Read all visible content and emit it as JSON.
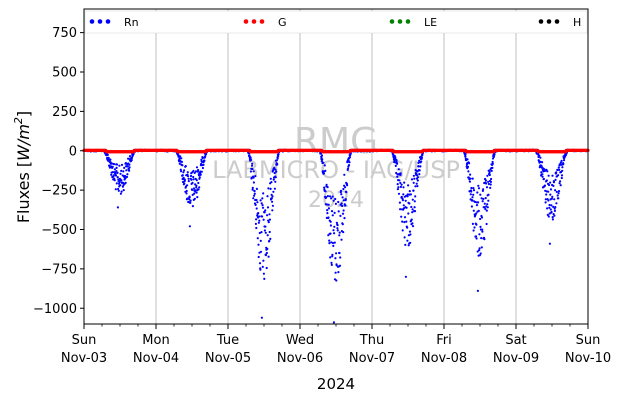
{
  "chart_data": {
    "type": "scatter",
    "title": "",
    "xlabel": "2024",
    "ylabel": "Fluxes [W/m²]",
    "ylabel_main": "Fluxes [",
    "ylabel_unit": "W/m",
    "ylabel_exp": "2",
    "ylabel_close": "]",
    "ylim": [
      -1100,
      900
    ],
    "yticks": [
      750,
      500,
      250,
      0,
      -250,
      -500,
      -750,
      -1000
    ],
    "ytick_labels": [
      "750",
      "500",
      "250",
      "0",
      "−250",
      "−500",
      "−750",
      "−1000"
    ],
    "xlim": [
      "2024-11-03",
      "2024-11-10"
    ],
    "xticks": [
      {
        "day": "Sun",
        "date": "Nov-03"
      },
      {
        "day": "Mon",
        "date": "Nov-04"
      },
      {
        "day": "Tue",
        "date": "Nov-05"
      },
      {
        "day": "Wed",
        "date": "Nov-06"
      },
      {
        "day": "Thu",
        "date": "Nov-07"
      },
      {
        "day": "Fri",
        "date": "Nov-08"
      },
      {
        "day": "Sat",
        "date": "Nov-09"
      },
      {
        "day": "Sun",
        "date": "Nov-10"
      }
    ],
    "grid": "vertical",
    "legend_position": "top",
    "series": [
      {
        "name": "Rn",
        "color": "#0000ff"
      },
      {
        "name": "G",
        "color": "#ff0000"
      },
      {
        "name": "LE",
        "color": "#008000"
      },
      {
        "name": "H",
        "color": "#000000"
      }
    ],
    "rn_daily_minimum": [
      {
        "date": "2024-11-03",
        "min": -360
      },
      {
        "date": "2024-11-04",
        "min": -480
      },
      {
        "date": "2024-11-05",
        "min": -1060
      },
      {
        "date": "2024-11-06",
        "min": -1090
      },
      {
        "date": "2024-11-07",
        "min": -800
      },
      {
        "date": "2024-11-08",
        "min": -890
      },
      {
        "date": "2024-11-09",
        "min": -590
      }
    ],
    "g_level": 0,
    "watermark": [
      "RMG",
      "LABMICRO - IAG/USP",
      "2024"
    ]
  }
}
